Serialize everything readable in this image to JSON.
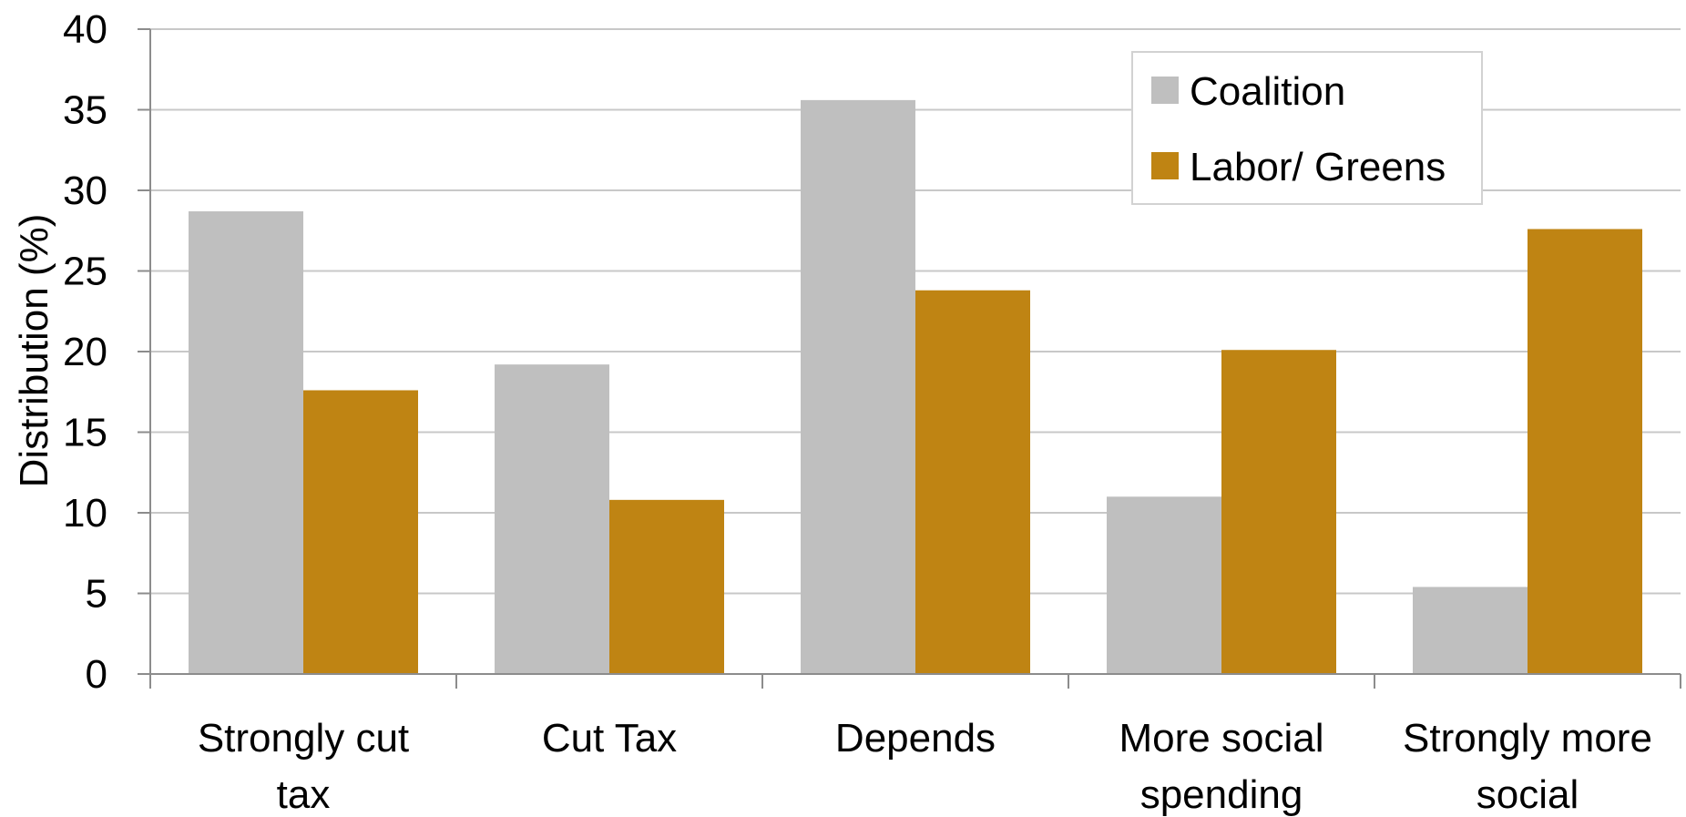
{
  "chart_data": {
    "type": "bar",
    "title": "",
    "xlabel": "",
    "ylabel": "Distribution (%)",
    "ylim": [
      0,
      40
    ],
    "yticks": [
      0,
      5,
      10,
      15,
      20,
      25,
      30,
      35,
      40
    ],
    "grid": true,
    "legend_position": "top-right",
    "categories": [
      [
        "Strongly cut",
        "tax"
      ],
      [
        "Cut Tax"
      ],
      [
        "Depends"
      ],
      [
        "More social",
        "spending"
      ],
      [
        "Strongly more",
        "social"
      ]
    ],
    "series": [
      {
        "name": "Coalition",
        "color": "#bfbfbf",
        "values": [
          28.7,
          19.2,
          35.6,
          11.0,
          5.4
        ]
      },
      {
        "name": "Labor/ Greens",
        "color": "#bf8413",
        "values": [
          17.6,
          10.8,
          23.8,
          20.1,
          27.6
        ]
      }
    ]
  }
}
